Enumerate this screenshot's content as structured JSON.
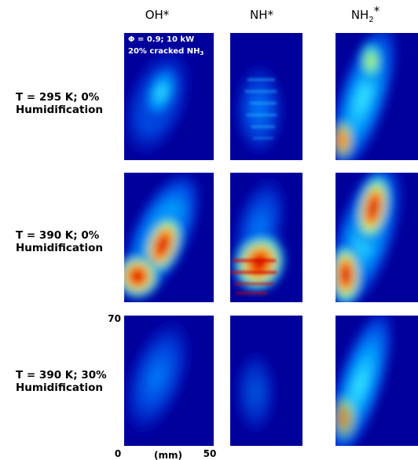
{
  "column_headers": [
    {
      "text": "OH*"
    },
    {
      "text": "NH*"
    },
    {
      "base": "NH",
      "sub": "2",
      "sup": "*"
    }
  ],
  "row_labels": [
    [
      "T = 295 K; 0%",
      "Humidification"
    ],
    [
      "T = 390 K; 0%",
      "Humidification"
    ],
    [
      "T = 390 K; 30%",
      "Humidification"
    ]
  ],
  "annotation": {
    "line1": "Φ = 0.9; 10 kW",
    "line2_base": "20% cracked NH",
    "line2_sub": "3"
  },
  "scale": {
    "x_ticks": [
      0,
      50
    ],
    "x_label": "(mm)",
    "y_ticks": [
      70,
      0
    ]
  }
}
